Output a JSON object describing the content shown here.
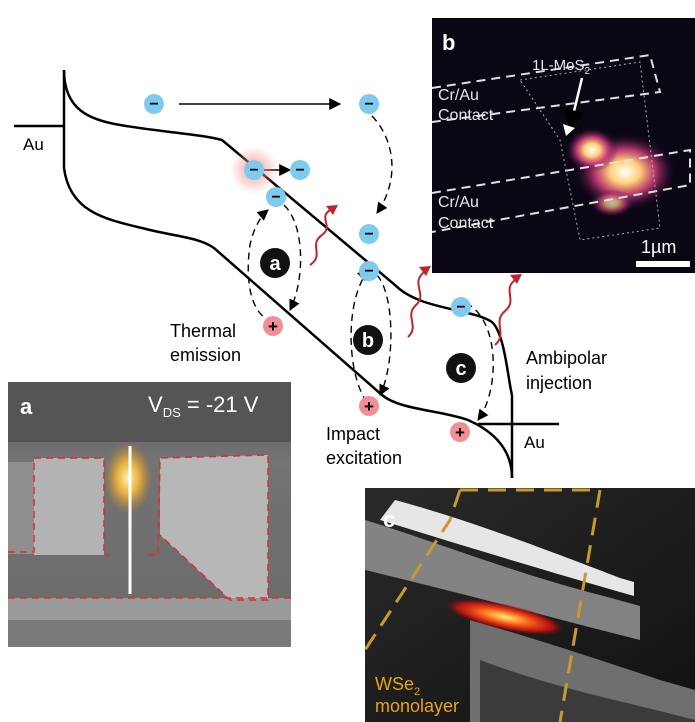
{
  "band_diagram": {
    "left_contact": "Au",
    "right_contact": "Au",
    "electron_sign": "−",
    "hole_sign": "+",
    "mechanisms": [
      {
        "badge": "a",
        "line1": "Thermal",
        "line2": "emission"
      },
      {
        "badge": "b",
        "line1": "Impact",
        "line2": "excitation"
      },
      {
        "badge": "c",
        "line1": "Ambipolar",
        "line2": "injection"
      }
    ],
    "colors": {
      "electron": "#7ecbee",
      "hole": "#f28f93",
      "photon": "#c0242f",
      "badge": "#111111"
    }
  },
  "panel_a": {
    "letter": "a",
    "voltage_main": "V",
    "voltage_sub": "DS",
    "voltage_value": " = -21 V"
  },
  "panel_b": {
    "letter": "b",
    "layer_main": "1L-MoS",
    "layer_sub": "2",
    "contact_top_line1": "Cr/Au",
    "contact_top_line2": "Contact",
    "contact_bottom_line1": "Cr/Au",
    "contact_bottom_line2": "Contact",
    "scale": "1µm"
  },
  "panel_c": {
    "letter": "c",
    "material_main": "WSe",
    "material_sub": "2",
    "material_line2": "monolayer",
    "label_color": "#e8a317"
  }
}
